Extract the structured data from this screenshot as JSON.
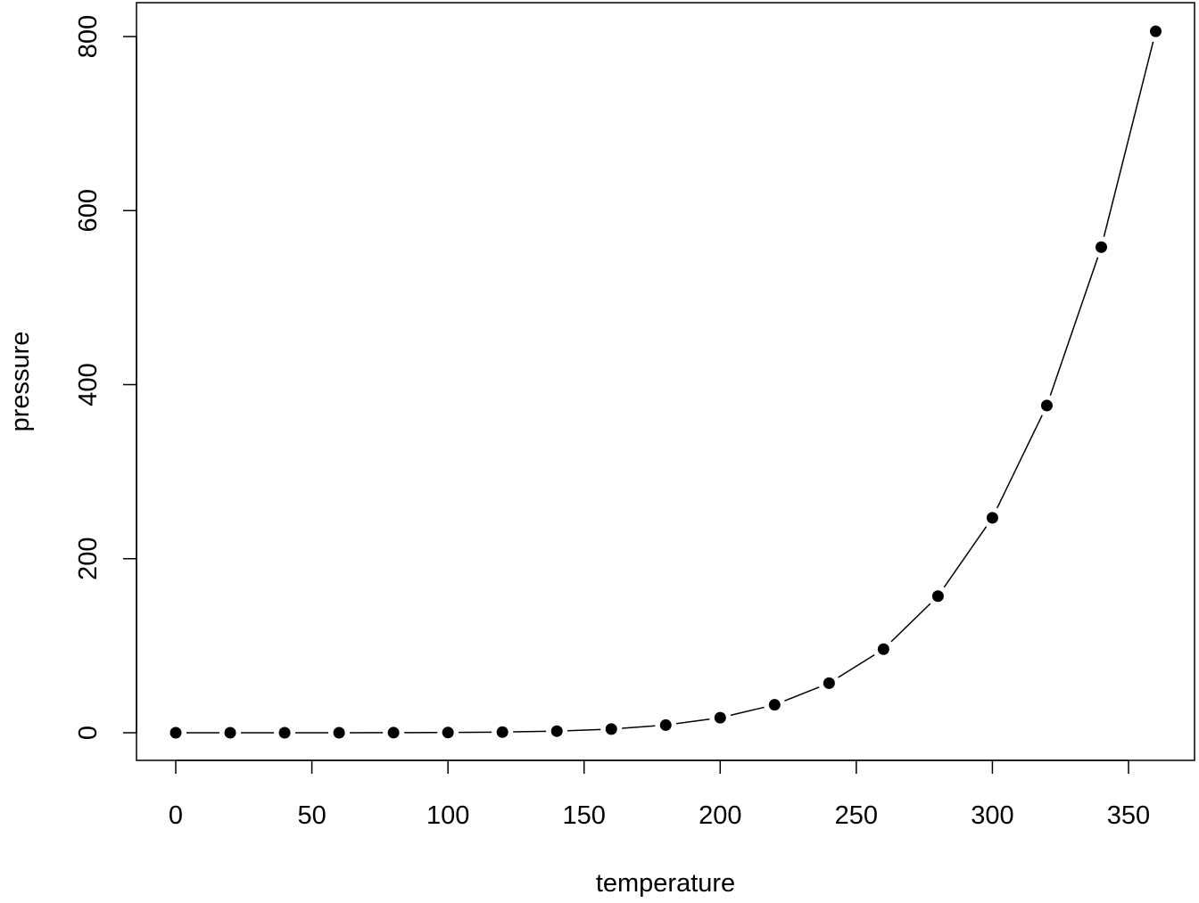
{
  "chart_data": {
    "type": "line",
    "style": "points-and-lines",
    "title": "",
    "xlabel": "temperature",
    "ylabel": "pressure",
    "x": [
      0,
      20,
      40,
      60,
      80,
      100,
      120,
      140,
      160,
      180,
      200,
      220,
      240,
      260,
      280,
      300,
      320,
      340,
      360
    ],
    "series": [
      {
        "values": [
          0.0002,
          0.0012,
          0.006,
          0.03,
          0.09,
          0.27,
          0.75,
          1.85,
          4.2,
          8.8,
          17.3,
          32.1,
          57,
          96,
          157,
          247,
          376,
          558,
          806
        ]
      }
    ],
    "xlim": [
      -3.6,
      386
    ],
    "ylim": [
      -32,
      840
    ],
    "xticks": [
      "0",
      "50",
      "100",
      "150",
      "200",
      "250",
      "300",
      "350"
    ],
    "yticks": [
      "0",
      "200",
      "400",
      "600",
      "800"
    ],
    "grid": false,
    "color": "#000000"
  }
}
